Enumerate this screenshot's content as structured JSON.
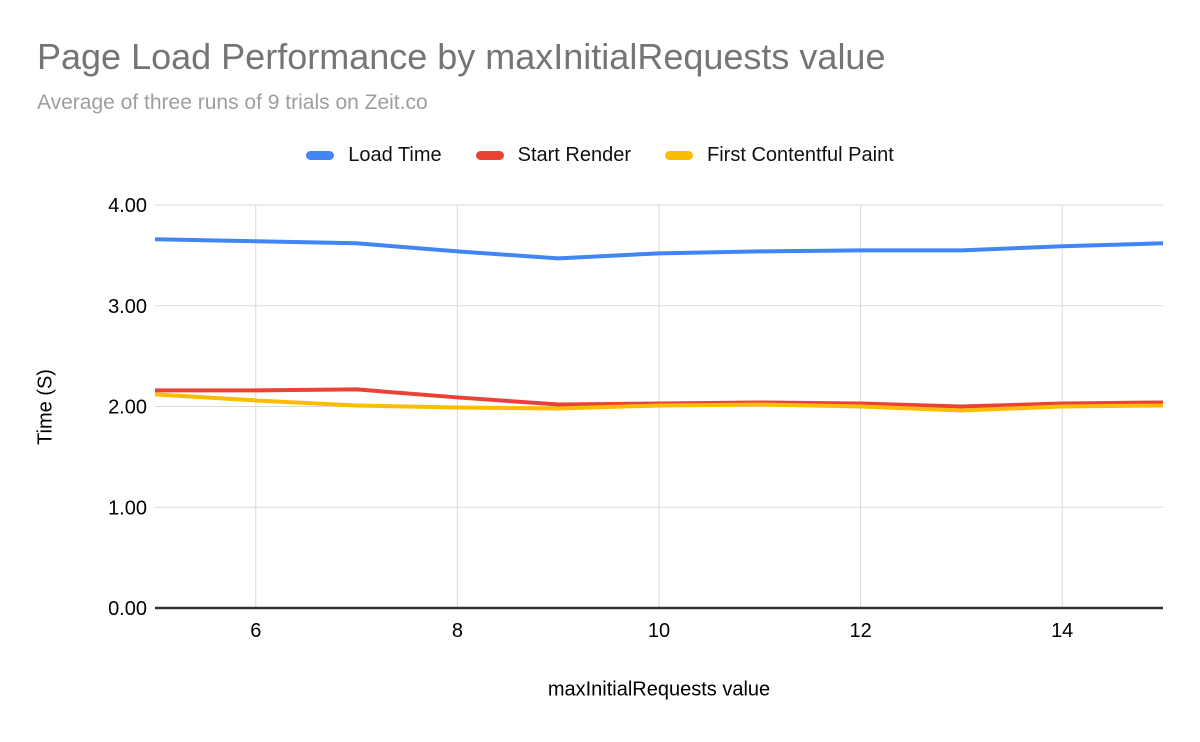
{
  "page": {
    "background": "#ffffff"
  },
  "chart_data": {
    "type": "line",
    "title": "Page Load Performance by maxInitialRequests value",
    "subtitle": "Average of three runs of 9 trials on Zeit.co",
    "xlabel": "maxInitialRequests value",
    "ylabel": "Time (S)",
    "x": [
      5,
      6,
      7,
      8,
      9,
      10,
      11,
      12,
      13,
      14,
      15
    ],
    "xlim": [
      5,
      15
    ],
    "ylim": [
      0,
      4
    ],
    "xticks": [
      {
        "v": 6,
        "label": "6"
      },
      {
        "v": 8,
        "label": "8"
      },
      {
        "v": 10,
        "label": "10"
      },
      {
        "v": 12,
        "label": "12"
      },
      {
        "v": 14,
        "label": "14"
      }
    ],
    "yticks": [
      {
        "v": 0,
        "label": "0.00"
      },
      {
        "v": 1,
        "label": "1.00"
      },
      {
        "v": 2,
        "label": "2.00"
      },
      {
        "v": 3,
        "label": "3.00"
      },
      {
        "v": 4,
        "label": "4.00"
      }
    ],
    "grid": true,
    "grid_color": "#d9d9d9",
    "baseline_color": "#333333",
    "legend_position": "top",
    "series": [
      {
        "name": "Load Time",
        "color": "#4285F4",
        "values": [
          3.66,
          3.64,
          3.62,
          3.54,
          3.47,
          3.52,
          3.54,
          3.55,
          3.55,
          3.59,
          3.62
        ]
      },
      {
        "name": "Start Render",
        "color": "#EA4335",
        "values": [
          2.16,
          2.16,
          2.17,
          2.09,
          2.02,
          2.03,
          2.04,
          2.03,
          2.0,
          2.03,
          2.04
        ]
      },
      {
        "name": "First Contentful Paint",
        "color": "#FBBC04",
        "values": [
          2.12,
          2.06,
          2.01,
          1.99,
          1.98,
          2.01,
          2.02,
          2.0,
          1.96,
          2.0,
          2.01
        ]
      }
    ]
  }
}
